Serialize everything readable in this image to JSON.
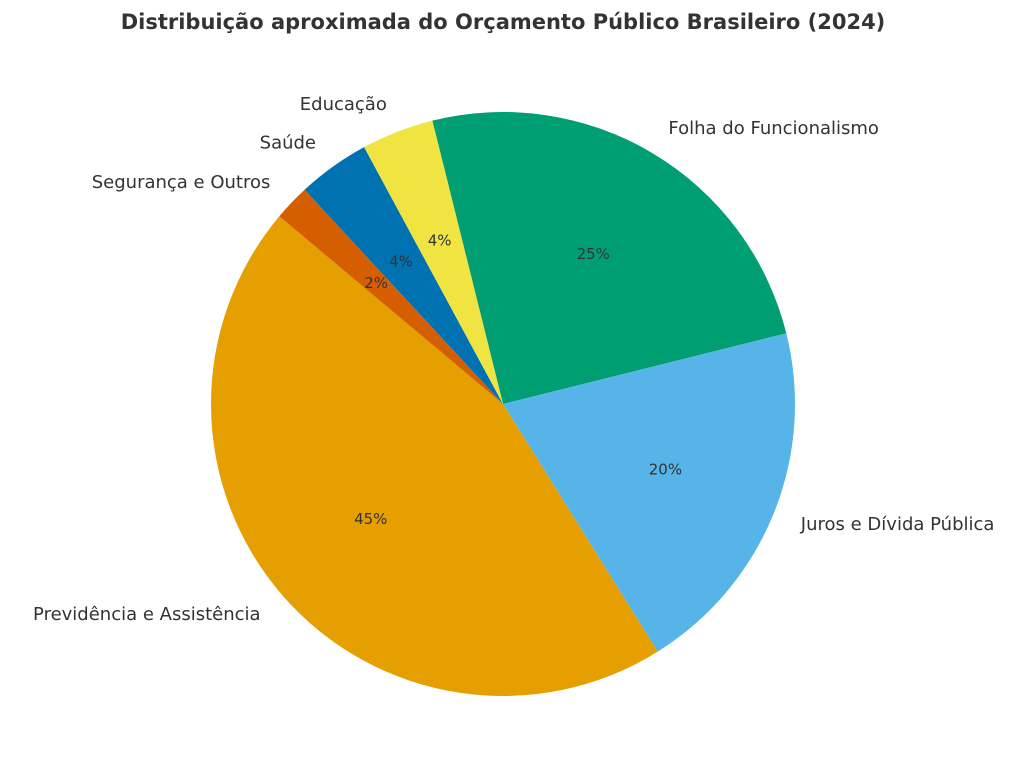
{
  "chart_data": {
    "type": "pie",
    "title": "Distribuição aproximada do Orçamento Público Brasileiro (2024)",
    "slices": [
      {
        "label": "Folha do Funcionalismo",
        "value": 25,
        "pct_label": "25%",
        "color": "#009E73"
      },
      {
        "label": "Juros e Dívida Pública",
        "value": 20,
        "pct_label": "20%",
        "color": "#56B4E9"
      },
      {
        "label": "Previdência e Assistência",
        "value": 45,
        "pct_label": "45%",
        "color": "#E69F00"
      },
      {
        "label": "Segurança e Outros",
        "value": 2,
        "pct_label": "2%",
        "color": "#D55E00"
      },
      {
        "label": "Saúde",
        "value": 4,
        "pct_label": "4%",
        "color": "#0072B2"
      },
      {
        "label": "Educação",
        "value": 4,
        "pct_label": "4%",
        "color": "#F0E442"
      }
    ],
    "legend": "none"
  }
}
